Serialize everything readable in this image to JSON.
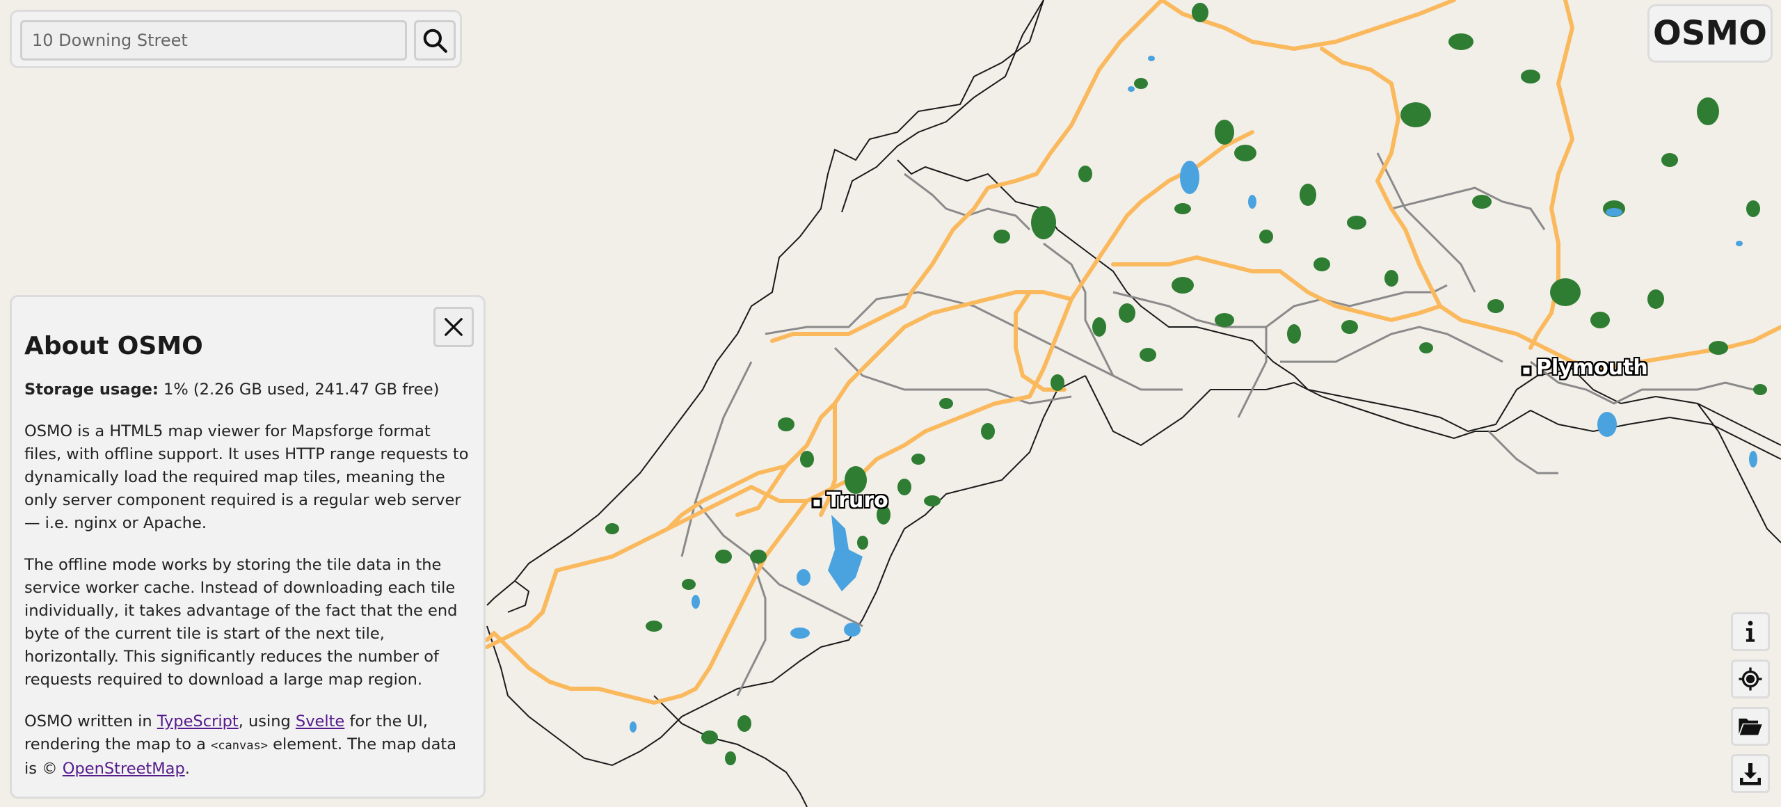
{
  "search": {
    "placeholder": "10 Downing Street",
    "value": ""
  },
  "brand": "OSMO",
  "about": {
    "title": "About OSMO",
    "storage_label": "Storage usage:",
    "storage_value": "1% (2.26 GB used, 241.47 GB free)",
    "para1": "OSMO is a HTML5 map viewer for Mapsforge format files, with offline support. It uses HTTP range requests to dynamically load the required map tiles, meaning the only server component required is a regular web server — i.e. nginx or Apache.",
    "para2": "The offline mode works by storing the tile data in the service worker cache. Instead of downloading each tile individually, it takes advantage of the fact that the end byte of the current tile is start of the next tile, horizontally. This significantly reduces the number of requests required to download a large map region.",
    "para3_part1": "OSMO written in ",
    "link_typescript": "TypeScript",
    "para3_part2": ", using ",
    "link_svelte": "Svelte",
    "para3_part3": " for the UI, rendering the map to a ",
    "code_canvas": "<canvas>",
    "para3_part4": " element. The map data is © ",
    "link_osm": "OpenStreetMap",
    "para3_part5": "."
  },
  "map": {
    "places": [
      {
        "name": "Truro"
      },
      {
        "name": "Plymouth"
      }
    ],
    "colors": {
      "land": "#f2efe9",
      "forest": "#2e7d32",
      "water": "#4aa3df",
      "primary_road": "#fbb95e",
      "secondary_road": "#8a8a8a",
      "coastline": "#1a1a1a"
    }
  },
  "controls": {
    "icons": [
      "info-icon",
      "locate-icon",
      "folder-open-icon",
      "download-icon"
    ]
  }
}
